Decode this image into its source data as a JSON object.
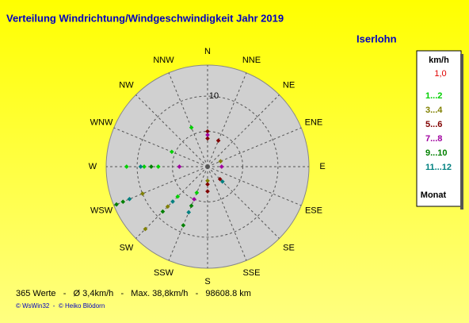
{
  "chart_data": {
    "type": "polar-scatter",
    "title": "Verteilung Windrichtung/Windgeschwindigkeit  Jahr 2019",
    "location": "Iserlohn",
    "directions": [
      "N",
      "NNE",
      "NE",
      "ENE",
      "E",
      "ESE",
      "SE",
      "SSE",
      "S",
      "SSW",
      "SW",
      "WSW",
      "W",
      "WNW",
      "NW",
      "NNW"
    ],
    "rlim": [
      0,
      14.4
    ],
    "rgrid": [
      5,
      10
    ],
    "rticks": [
      10
    ],
    "legend_title": "km/h",
    "legend_note": "1,0",
    "legend_footer": "Monat",
    "series": [
      {
        "name": "1...2",
        "color": "#00d000",
        "x": [
          270,
          270,
          270,
          292.5,
          225,
          337.5,
          202.5
        ],
        "values": [
          11.5,
          9,
          7,
          5.5,
          6,
          6,
          4
        ]
      },
      {
        "name": "3...4",
        "color": "#808000",
        "x": [
          225,
          225,
          247.5,
          67.5,
          180
        ],
        "values": [
          12.5,
          8,
          10,
          2,
          2
        ]
      },
      {
        "name": "5...6",
        "color": "#800000",
        "x": [
          0,
          0,
          22.5,
          180,
          180,
          135
        ],
        "values": [
          5,
          4,
          4,
          3.5,
          2.5,
          2.5
        ]
      },
      {
        "name": "7...8",
        "color": "#a000a0",
        "x": [
          0,
          202.5,
          270,
          90
        ],
        "values": [
          4.5,
          5,
          4,
          2
        ]
      },
      {
        "name": "9...10",
        "color": "#008000",
        "x": [
          247.5,
          247.5,
          225,
          202.5,
          202.5,
          270
        ],
        "values": [
          14,
          13,
          9,
          9,
          6,
          8
        ]
      },
      {
        "name": "11...12",
        "color": "#008080",
        "x": [
          247.5,
          225,
          270,
          202.5,
          135
        ],
        "values": [
          12,
          7,
          9.5,
          7,
          3
        ]
      }
    ],
    "footer": "365 Werte   -   Ø 3,4km/h   -   Max. 38,8km/h   -   98608.8 km",
    "credits": "© WsWin32  -  © Heiko Blödorn"
  }
}
